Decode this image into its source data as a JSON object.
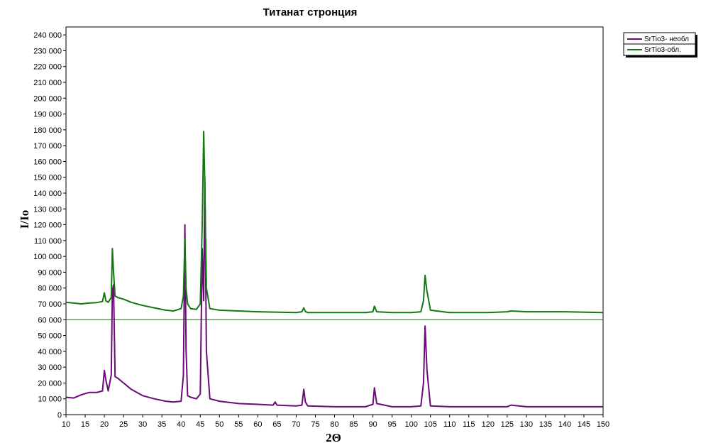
{
  "chart_data": {
    "type": "line",
    "title": "Титанат стронция",
    "xlabel": "2Θ",
    "ylabel": "I/Io",
    "xlim": [
      10,
      150
    ],
    "ylim": [
      0,
      245000
    ],
    "x_ticks": [
      10,
      15,
      20,
      25,
      30,
      35,
      40,
      45,
      50,
      55,
      60,
      65,
      70,
      75,
      80,
      85,
      90,
      95,
      100,
      105,
      110,
      115,
      120,
      125,
      130,
      135,
      140,
      145,
      150
    ],
    "y_ticks": [
      0,
      10000,
      20000,
      30000,
      40000,
      50000,
      60000,
      70000,
      80000,
      90000,
      100000,
      110000,
      120000,
      130000,
      140000,
      150000,
      160000,
      170000,
      180000,
      190000,
      200000,
      210000,
      220000,
      230000,
      240000
    ],
    "y_tick_labels": [
      "0",
      "10 000",
      "20 000",
      "30 000",
      "40 000",
      "50 000",
      "60 000",
      "70 000",
      "80 000",
      "90 000",
      "100 000",
      "110 000",
      "120 000",
      "130 000",
      "140 000",
      "150 000",
      "160 000",
      "170 000",
      "180 000",
      "190 000",
      "200 000",
      "210 000",
      "220 000",
      "230 000",
      "240 000"
    ],
    "reference_line": 60000,
    "grid": false,
    "legend_position": "top-right",
    "series": [
      {
        "name": "SrTio3- необл",
        "color": "#6b0a78",
        "x": [
          10,
          12,
          14,
          16,
          18,
          19.5,
          20,
          20.4,
          21,
          21.8,
          22.1,
          22.4,
          22.8,
          23.5,
          25,
          27,
          30,
          33,
          36,
          38,
          40,
          40.6,
          41,
          41.3,
          41.7,
          42.5,
          44,
          45,
          45.5,
          45.9,
          46.2,
          46.6,
          47.5,
          50,
          55,
          60,
          64,
          64.5,
          65,
          70,
          71.5,
          72,
          72.4,
          73,
          80,
          88,
          90,
          90.4,
          91,
          95,
          100,
          102.5,
          103.2,
          103.6,
          104.1,
          105,
          110,
          120,
          125,
          126,
          130,
          140,
          150
        ],
        "y": [
          11000,
          10500,
          12500,
          14000,
          14000,
          15000,
          28000,
          22000,
          15000,
          25000,
          78000,
          82000,
          24000,
          23000,
          20000,
          16000,
          12000,
          10000,
          8500,
          8000,
          8500,
          25000,
          120000,
          42000,
          12000,
          11000,
          10000,
          13000,
          105000,
          72000,
          150000,
          40000,
          10000,
          8500,
          7000,
          6500,
          6000,
          8000,
          6000,
          5500,
          6000,
          16000,
          8000,
          5500,
          5000,
          5000,
          6500,
          17000,
          7000,
          5000,
          5000,
          5500,
          20000,
          56000,
          28000,
          5500,
          5000,
          5000,
          5000,
          6000,
          5000,
          5000,
          5000
        ]
      },
      {
        "name": "SrTio3-обл.",
        "color": "#127812",
        "x": [
          10,
          12,
          14,
          16,
          18,
          19.5,
          20,
          20.4,
          21,
          21.8,
          22.1,
          22.4,
          22.8,
          23.5,
          25,
          27,
          30,
          33,
          36,
          38,
          40,
          40.6,
          41,
          41.3,
          41.7,
          42.5,
          44,
          45,
          45.5,
          45.9,
          46.2,
          46.6,
          47.5,
          50,
          55,
          60,
          70,
          71.5,
          72,
          72.4,
          73,
          80,
          88,
          90,
          90.4,
          91,
          95,
          100,
          102.5,
          103.2,
          103.6,
          104.1,
          105,
          110,
          120,
          125,
          126,
          130,
          140,
          150
        ],
        "y": [
          71000,
          70500,
          70000,
          70500,
          70800,
          71500,
          77000,
          72000,
          71000,
          74000,
          105000,
          90000,
          75000,
          74000,
          73000,
          71000,
          69000,
          67500,
          66000,
          65500,
          67000,
          75000,
          111000,
          80000,
          70000,
          67000,
          66500,
          70000,
          120000,
          179000,
          145000,
          80000,
          67000,
          66000,
          65500,
          65000,
          64500,
          65000,
          67500,
          65200,
          64500,
          64500,
          64500,
          65000,
          68500,
          65000,
          64500,
          64500,
          65000,
          72000,
          88000,
          78000,
          66000,
          64500,
          64500,
          65000,
          65500,
          65000,
          65000,
          64500
        ]
      }
    ]
  }
}
